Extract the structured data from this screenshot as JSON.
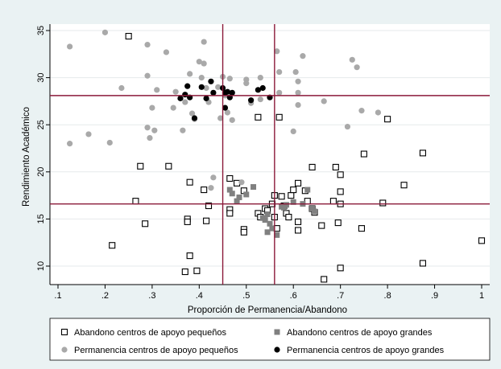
{
  "chart_data": {
    "type": "scatter",
    "xlabel": "Proporción de Permanencia/Abandono",
    "ylabel": "Rendimiento Académico",
    "xlim": [
      0.1,
      1.0
    ],
    "ylim": [
      8.0,
      35.5
    ],
    "x_ticks": [
      0.1,
      0.2,
      0.3,
      0.4,
      0.5,
      0.6,
      0.7,
      0.8,
      0.9,
      1.0
    ],
    "x_tick_labels": [
      ".1",
      ".2",
      ".3",
      ".4",
      ".5",
      ".6",
      ".7",
      ".8",
      ".9",
      "1"
    ],
    "y_ticks": [
      10,
      15,
      20,
      25,
      30,
      35
    ],
    "y_tick_labels": [
      "10",
      "15",
      "20",
      "25",
      "30",
      "35"
    ],
    "grid": true,
    "legend_position": "bottom",
    "reference_lines": {
      "vertical": [
        0.45,
        0.56
      ],
      "horizontal": [
        16.6,
        28.1
      ],
      "color": "#8b1a3a"
    },
    "series": [
      {
        "name": "Abandono centros de apoyo pequeños",
        "marker": "square-hollow",
        "color": "#000000",
        "points": [
          [
            0.25,
            34.4
          ],
          [
            0.275,
            20.6
          ],
          [
            0.265,
            16.9
          ],
          [
            0.285,
            14.5
          ],
          [
            0.215,
            12.2
          ],
          [
            0.335,
            20.6
          ],
          [
            0.38,
            18.9
          ],
          [
            0.375,
            15.0
          ],
          [
            0.375,
            14.7
          ],
          [
            0.41,
            18.1
          ],
          [
            0.42,
            16.4
          ],
          [
            0.415,
            14.8
          ],
          [
            0.38,
            11.1
          ],
          [
            0.37,
            9.4
          ],
          [
            0.395,
            9.5
          ],
          [
            0.465,
            19.3
          ],
          [
            0.48,
            18.8
          ],
          [
            0.465,
            16.0
          ],
          [
            0.465,
            15.6
          ],
          [
            0.495,
            18.0
          ],
          [
            0.495,
            13.9
          ],
          [
            0.495,
            13.6
          ],
          [
            0.525,
            25.8
          ],
          [
            0.525,
            15.6
          ],
          [
            0.53,
            15.2
          ],
          [
            0.54,
            16.1
          ],
          [
            0.545,
            15.9
          ],
          [
            0.555,
            16.6
          ],
          [
            0.56,
            17.5
          ],
          [
            0.56,
            15.2
          ],
          [
            0.565,
            14.0
          ],
          [
            0.57,
            25.8
          ],
          [
            0.575,
            17.4
          ],
          [
            0.58,
            16.4
          ],
          [
            0.585,
            15.6
          ],
          [
            0.59,
            15.2
          ],
          [
            0.595,
            17.5
          ],
          [
            0.6,
            18.1
          ],
          [
            0.61,
            18.8
          ],
          [
            0.61,
            14.7
          ],
          [
            0.61,
            13.8
          ],
          [
            0.625,
            18.0
          ],
          [
            0.63,
            16.9
          ],
          [
            0.64,
            16.1
          ],
          [
            0.64,
            20.5
          ],
          [
            0.645,
            15.7
          ],
          [
            0.66,
            14.3
          ],
          [
            0.665,
            8.6
          ],
          [
            0.685,
            16.9
          ],
          [
            0.695,
            14.6
          ],
          [
            0.69,
            20.5
          ],
          [
            0.7,
            19.7
          ],
          [
            0.7,
            17.9
          ],
          [
            0.7,
            16.6
          ],
          [
            0.7,
            9.8
          ],
          [
            0.75,
            21.9
          ],
          [
            0.745,
            14.0
          ],
          [
            0.79,
            16.7
          ],
          [
            0.8,
            25.6
          ],
          [
            0.835,
            18.6
          ],
          [
            0.875,
            22.0
          ],
          [
            0.875,
            10.3
          ],
          [
            1.0,
            12.7
          ]
        ]
      },
      {
        "name": "Abandono centros de apoyo grandes",
        "marker": "square-filled",
        "color": "#808080",
        "points": [
          [
            0.465,
            18.1
          ],
          [
            0.47,
            17.7
          ],
          [
            0.48,
            16.9
          ],
          [
            0.485,
            17.3
          ],
          [
            0.5,
            17.6
          ],
          [
            0.515,
            18.4
          ],
          [
            0.535,
            15.1
          ],
          [
            0.54,
            14.9
          ],
          [
            0.545,
            15.5
          ],
          [
            0.545,
            13.6
          ],
          [
            0.55,
            14.5
          ],
          [
            0.555,
            14.0
          ],
          [
            0.565,
            13.3
          ],
          [
            0.575,
            16.3
          ],
          [
            0.58,
            16.2
          ],
          [
            0.585,
            16.5
          ],
          [
            0.6,
            16.8
          ],
          [
            0.62,
            16.6
          ],
          [
            0.63,
            18.1
          ],
          [
            0.64,
            16.1
          ],
          [
            0.645,
            15.8
          ]
        ]
      },
      {
        "name": "Permanencia centros de apoyo pequeños",
        "marker": "circle-filled",
        "color": "#a9a9a9",
        "points": [
          [
            0.125,
            33.3
          ],
          [
            0.125,
            23.0
          ],
          [
            0.165,
            24.0
          ],
          [
            0.2,
            34.8
          ],
          [
            0.21,
            23.1
          ],
          [
            0.235,
            28.9
          ],
          [
            0.29,
            33.5
          ],
          [
            0.29,
            30.2
          ],
          [
            0.29,
            24.7
          ],
          [
            0.295,
            23.6
          ],
          [
            0.3,
            26.8
          ],
          [
            0.305,
            24.4
          ],
          [
            0.31,
            28.7
          ],
          [
            0.33,
            32.7
          ],
          [
            0.345,
            26.8
          ],
          [
            0.35,
            28.5
          ],
          [
            0.365,
            24.4
          ],
          [
            0.37,
            27.4
          ],
          [
            0.38,
            30.4
          ],
          [
            0.385,
            26.2
          ],
          [
            0.39,
            25.6
          ],
          [
            0.4,
            31.7
          ],
          [
            0.405,
            30.0
          ],
          [
            0.41,
            33.8
          ],
          [
            0.41,
            31.5
          ],
          [
            0.415,
            28.9
          ],
          [
            0.42,
            27.4
          ],
          [
            0.425,
            18.3
          ],
          [
            0.43,
            19.4
          ],
          [
            0.44,
            29.0
          ],
          [
            0.445,
            25.7
          ],
          [
            0.45,
            30.1
          ],
          [
            0.455,
            28.1
          ],
          [
            0.46,
            26.3
          ],
          [
            0.465,
            29.9
          ],
          [
            0.47,
            25.5
          ],
          [
            0.49,
            18.9
          ],
          [
            0.5,
            29.8
          ],
          [
            0.5,
            29.4
          ],
          [
            0.51,
            27.3
          ],
          [
            0.53,
            27.7
          ],
          [
            0.53,
            30.0
          ],
          [
            0.565,
            32.8
          ],
          [
            0.57,
            28.4
          ],
          [
            0.57,
            30.6
          ],
          [
            0.6,
            24.3
          ],
          [
            0.605,
            30.6
          ],
          [
            0.61,
            29.6
          ],
          [
            0.61,
            28.4
          ],
          [
            0.61,
            27.1
          ],
          [
            0.62,
            32.3
          ],
          [
            0.665,
            27.5
          ],
          [
            0.715,
            24.8
          ],
          [
            0.725,
            31.9
          ],
          [
            0.735,
            31.1
          ],
          [
            0.745,
            26.5
          ],
          [
            0.78,
            26.3
          ]
        ]
      },
      {
        "name": "Permanencia centros de apoyo grandes",
        "marker": "circle-filled",
        "color": "#000000",
        "points": [
          [
            0.36,
            27.8
          ],
          [
            0.37,
            28.2
          ],
          [
            0.375,
            29.1
          ],
          [
            0.38,
            27.9
          ],
          [
            0.39,
            25.7
          ],
          [
            0.405,
            29.0
          ],
          [
            0.415,
            27.8
          ],
          [
            0.425,
            29.6
          ],
          [
            0.43,
            28.4
          ],
          [
            0.45,
            28.9
          ],
          [
            0.455,
            28.4
          ],
          [
            0.455,
            26.8
          ],
          [
            0.46,
            28.5
          ],
          [
            0.465,
            27.9
          ],
          [
            0.47,
            28.4
          ],
          [
            0.51,
            27.6
          ],
          [
            0.525,
            28.7
          ],
          [
            0.535,
            28.9
          ],
          [
            0.55,
            27.9
          ]
        ]
      }
    ]
  }
}
